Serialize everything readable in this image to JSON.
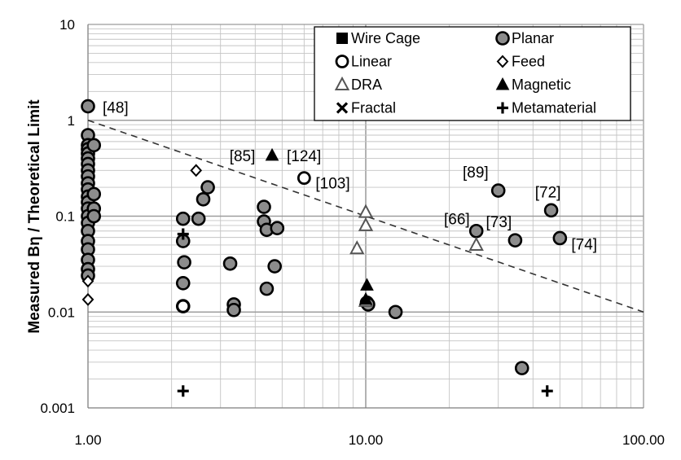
{
  "chart_data": {
    "type": "scatter",
    "title": "",
    "xlabel": "",
    "ylabel": "Measured Bη / Theoretical Limit",
    "x_scale": "log",
    "y_scale": "log",
    "xlim": [
      1,
      100
    ],
    "ylim": [
      0.001,
      10
    ],
    "grid": true,
    "legend_position": "top-right",
    "x_ticks": [
      "1.00",
      "10.00",
      "100.00"
    ],
    "y_ticks": [
      "0.001",
      "0.01",
      "0.1",
      "1",
      "10"
    ],
    "reference_line": {
      "style": "dashed",
      "points": [
        [
          1,
          1
        ],
        [
          100,
          0.01
        ]
      ]
    },
    "series": [
      {
        "name": "Wire Cage",
        "marker": "filled-square",
        "points": []
      },
      {
        "name": "Planar",
        "marker": "gray-circle",
        "points": [
          [
            1.0,
            1.4
          ],
          [
            1.0,
            0.7
          ],
          [
            1.0,
            0.55
          ],
          [
            1.0,
            0.5
          ],
          [
            1.0,
            0.45
          ],
          [
            1.0,
            0.4
          ],
          [
            1.0,
            0.35
          ],
          [
            1.0,
            0.3
          ],
          [
            1.0,
            0.26
          ],
          [
            1.0,
            0.22
          ],
          [
            1.0,
            0.19
          ],
          [
            1.0,
            0.16
          ],
          [
            1.0,
            0.14
          ],
          [
            1.0,
            0.12
          ],
          [
            1.0,
            0.1
          ],
          [
            1.0,
            0.085
          ],
          [
            1.0,
            0.07
          ],
          [
            1.0,
            0.055
          ],
          [
            1.0,
            0.045
          ],
          [
            1.0,
            0.035
          ],
          [
            1.0,
            0.028
          ],
          [
            1.0,
            0.024
          ],
          [
            1.05,
            0.55
          ],
          [
            1.05,
            0.17
          ],
          [
            1.05,
            0.12
          ],
          [
            1.05,
            0.1
          ],
          [
            2.2,
            0.094
          ],
          [
            2.2,
            0.055
          ],
          [
            2.22,
            0.033
          ],
          [
            2.2,
            0.02
          ],
          [
            2.2,
            0.0115
          ],
          [
            2.5,
            0.094
          ],
          [
            2.6,
            0.15
          ],
          [
            2.7,
            0.2
          ],
          [
            3.25,
            0.032
          ],
          [
            3.35,
            0.012
          ],
          [
            3.35,
            0.0105
          ],
          [
            4.3,
            0.125
          ],
          [
            4.3,
            0.088
          ],
          [
            4.4,
            0.072
          ],
          [
            4.4,
            0.0175
          ],
          [
            4.7,
            0.03
          ],
          [
            4.8,
            0.075
          ],
          [
            10.1,
            0.0125
          ],
          [
            10.2,
            0.012
          ],
          [
            12.8,
            0.01
          ],
          [
            25.0,
            0.07
          ],
          [
            30.0,
            0.185
          ],
          [
            34.5,
            0.056
          ],
          [
            36.5,
            0.0026
          ],
          [
            46.5,
            0.115
          ],
          [
            50.0,
            0.059
          ]
        ]
      },
      {
        "name": "Linear",
        "marker": "open-circle",
        "points": [
          [
            6.0,
            0.25
          ],
          [
            2.2,
            0.0115
          ]
        ]
      },
      {
        "name": "Feed",
        "marker": "open-diamond",
        "points": [
          [
            2.45,
            0.3
          ],
          [
            1.0,
            0.0135
          ],
          [
            1.0,
            0.021
          ]
        ]
      },
      {
        "name": "DRA",
        "marker": "open-triangle",
        "points": [
          [
            10.0,
            0.11
          ],
          [
            10.0,
            0.08
          ],
          [
            9.3,
            0.046
          ],
          [
            25.0,
            0.05
          ],
          [
            10.0,
            0.013
          ]
        ]
      },
      {
        "name": "Magnetic",
        "marker": "filled-triangle",
        "points": [
          [
            4.6,
            0.43
          ],
          [
            10.1,
            0.019
          ],
          [
            10.0,
            0.0135
          ]
        ]
      },
      {
        "name": "Fractal",
        "marker": "x",
        "points": []
      },
      {
        "name": "Metamaterial",
        "marker": "plus",
        "points": [
          [
            2.2,
            0.0015
          ],
          [
            2.2,
            0.065
          ],
          [
            45.0,
            0.0015
          ]
        ]
      }
    ],
    "annotations": [
      {
        "text": "[48]",
        "x": 1.0,
        "y": 1.4
      },
      {
        "text": "[85]",
        "x": 4.4,
        "y": 0.43
      },
      {
        "text": "[124]",
        "x": 4.6,
        "y": 0.43
      },
      {
        "text": "[103]",
        "x": 6.0,
        "y": 0.25
      },
      {
        "text": "[89]",
        "x": 30.0,
        "y": 0.185
      },
      {
        "text": "[72]",
        "x": 46.5,
        "y": 0.115
      },
      {
        "text": "[66]",
        "x": 25.0,
        "y": 0.07
      },
      {
        "text": "[73]",
        "x": 34.5,
        "y": 0.056
      },
      {
        "text": "[74]",
        "x": 50.0,
        "y": 0.059
      }
    ]
  }
}
